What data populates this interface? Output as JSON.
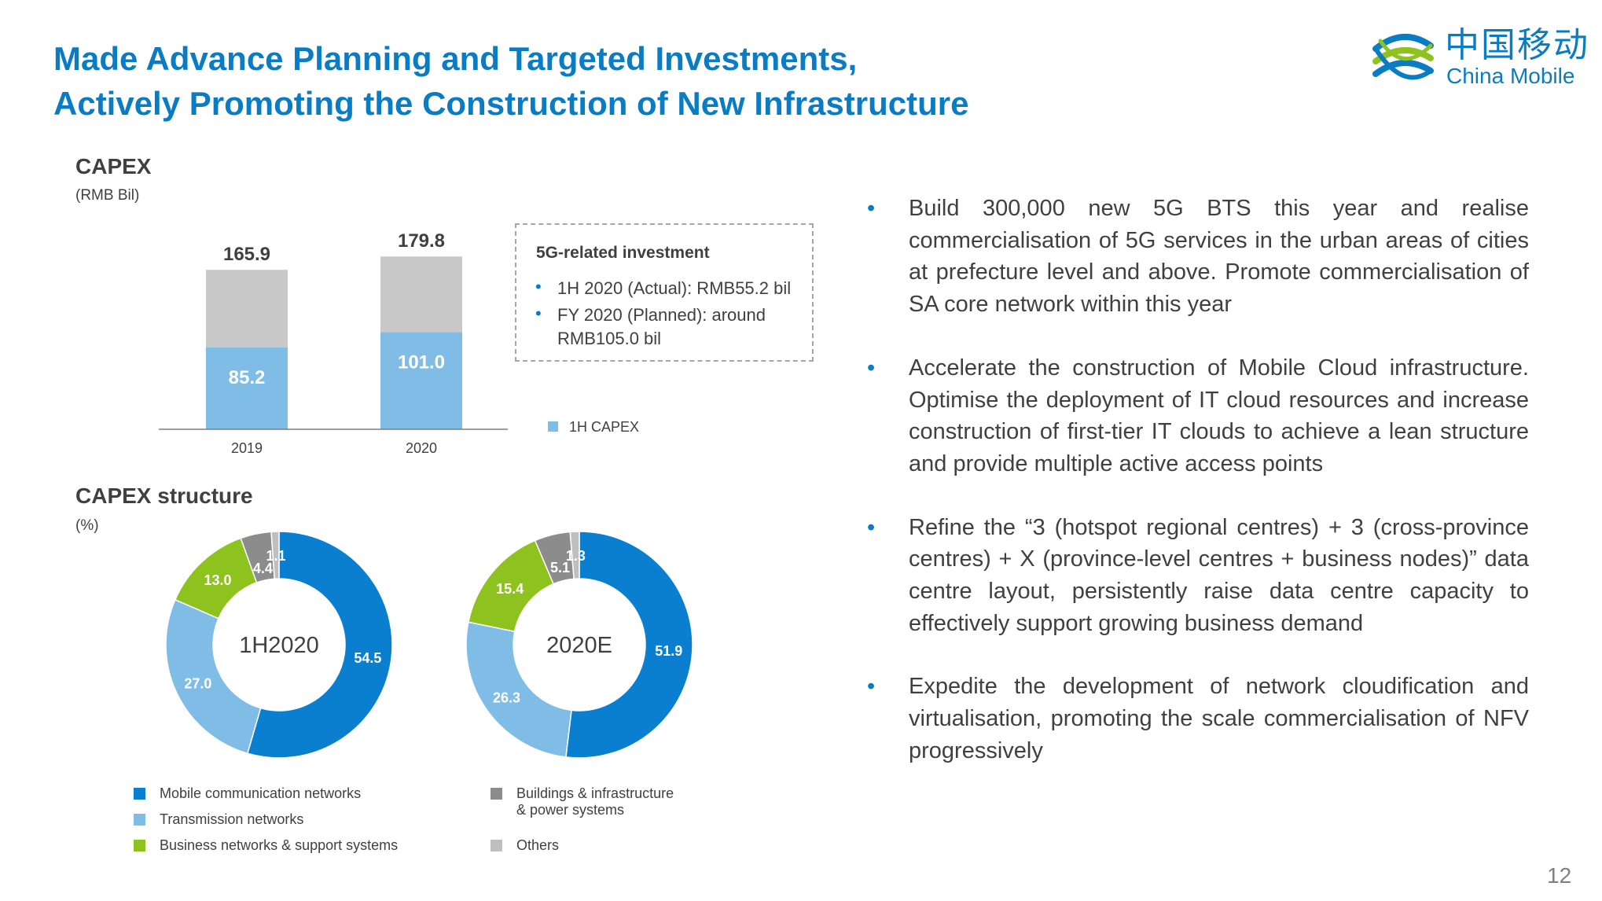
{
  "title": {
    "line1": "Made Advance Planning and Targeted Investments,",
    "line2": "Actively Promoting the Construction of New Infrastructure"
  },
  "logo": {
    "chinese": "中国移动",
    "english": "China Mobile"
  },
  "capex": {
    "title": "CAPEX",
    "unit": "(RMB Bil)",
    "legend_label": "1H CAPEX"
  },
  "investment_box": {
    "title": "5G-related investment",
    "items": [
      "1H 2020 (Actual): RMB55.2 bil",
      "FY 2020 (Planned): around",
      "RMB105.0 bil"
    ]
  },
  "structure": {
    "title": "CAPEX structure",
    "unit": "(%)",
    "legend": [
      "Mobile communication networks",
      "Transmission networks",
      "Business networks & support systems",
      "Buildings & infrastructure",
      "& power systems",
      "Others"
    ]
  },
  "bullets": [
    "Build 300,000 new 5G BTS this year and realise commercialisation of 5G services in the urban  areas of cities at prefecture level and above. Promote commercialisation of SA core network within this year",
    "Accelerate the construction of Mobile Cloud infrastructure. Optimise the deployment of IT cloud resources and increase construction of first-tier IT clouds to achieve a lean structure and provide multiple active access points",
    "Refine the “3 (hotspot regional centres) + 3 (cross-province centres) + X (province-level centres + business nodes)” data centre layout, persistently raise data centre capacity to effectively support growing business demand",
    "Expedite the development of network cloudification and virtualisation, promoting the scale commercialisation of NFV progressively"
  ],
  "page_number": "12",
  "colors": {
    "accent": "#0a7cc4",
    "mobile": "#0a7fd0",
    "transmission": "#7fbde6",
    "business": "#8dc21f",
    "buildings": "#8c8c8c",
    "others": "#bfbfbf",
    "bar_total": "#c8c8c8",
    "bar_1h": "#7fbde6"
  },
  "chart_data": [
    {
      "type": "bar",
      "title": "CAPEX",
      "ylabel": "(RMB Bil)",
      "categories": [
        "2019",
        "2020"
      ],
      "series": [
        {
          "name": "1H CAPEX",
          "values": [
            85.2,
            101.0
          ]
        },
        {
          "values": [
            165.9,
            179.8
          ]
        }
      ],
      "stacked": false,
      "legend": "right"
    },
    {
      "type": "pie",
      "subtype": "donut",
      "title": "CAPEX structure",
      "center_label": "1H2020",
      "unit": "(%)",
      "slices": [
        {
          "name": "Mobile communication networks",
          "value": 54.5
        },
        {
          "name": "Transmission networks",
          "value": 27.0
        },
        {
          "name": "Business networks & support systems",
          "value": 13.0
        },
        {
          "name": "Buildings & infrastructure & power systems",
          "value": 4.4
        },
        {
          "name": "Others",
          "value": 1.1
        }
      ]
    },
    {
      "type": "pie",
      "subtype": "donut",
      "title": "CAPEX structure",
      "center_label": "2020E",
      "unit": "(%)",
      "slices": [
        {
          "name": "Mobile communication networks",
          "value": 51.9
        },
        {
          "name": "Transmission networks",
          "value": 26.3
        },
        {
          "name": "Business networks & support systems",
          "value": 15.4
        },
        {
          "name": "Buildings & infrastructure & power systems",
          "value": 5.1
        },
        {
          "name": "Others",
          "value": 1.3
        }
      ]
    }
  ]
}
